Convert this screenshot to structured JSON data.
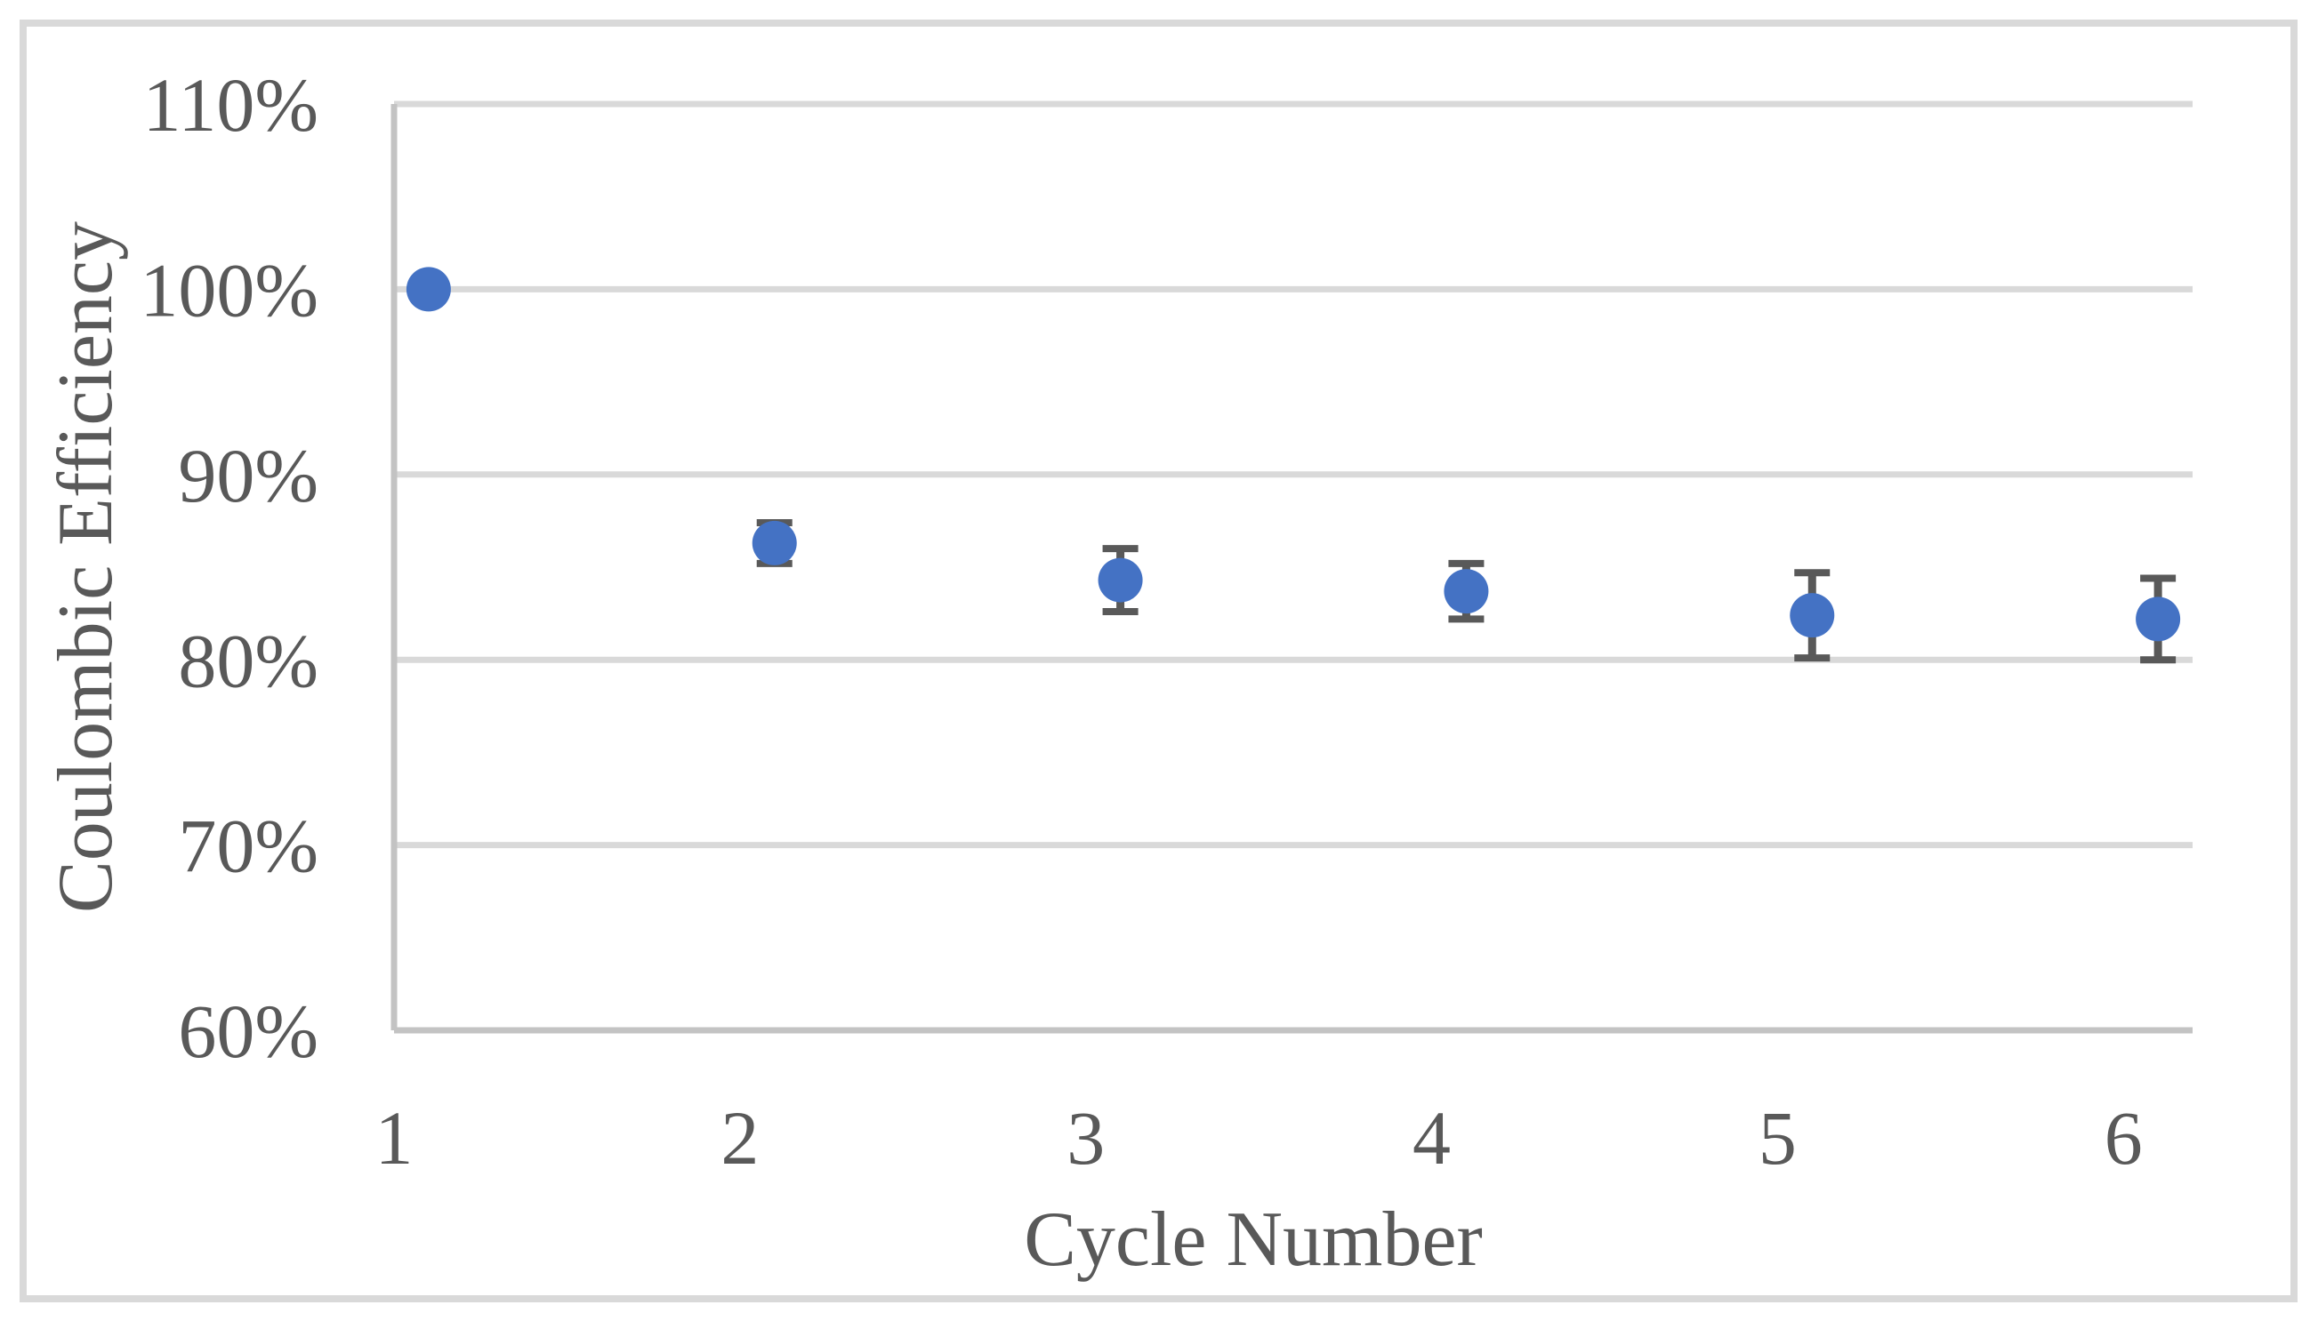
{
  "figure": {
    "background": "#ffffff",
    "border_color": "#d9d9d9"
  },
  "chart_data": {
    "type": "scatter",
    "title": "",
    "xlabel": "Cycle Number",
    "ylabel": "Coulombic Efficiency",
    "x": [
      1,
      2,
      3,
      4,
      5,
      6
    ],
    "series": [
      {
        "name": "Coulombic Efficiency",
        "values_percent": [
          100.0,
          86.3,
          84.3,
          83.7,
          82.4,
          82.2
        ],
        "error_percent": [
          0,
          1.1,
          1.7,
          1.5,
          2.3,
          2.2
        ],
        "marker": "circle"
      }
    ],
    "x_ticks": [
      {
        "value": 1,
        "label": "1"
      },
      {
        "value": 2,
        "label": "2"
      },
      {
        "value": 3,
        "label": "3"
      },
      {
        "value": 4,
        "label": "4"
      },
      {
        "value": 5,
        "label": "5"
      },
      {
        "value": 6,
        "label": "6"
      }
    ],
    "y_ticks": [
      {
        "value": 110,
        "label": "110%"
      },
      {
        "value": 100,
        "label": "100%"
      },
      {
        "value": 90,
        "label": "90%"
      },
      {
        "value": 80,
        "label": "80%"
      },
      {
        "value": 70,
        "label": "70%"
      },
      {
        "value": 60,
        "label": "60%"
      }
    ],
    "xlim": [
      1,
      6.2
    ],
    "ylim_percent": [
      60,
      110
    ],
    "x_point_offset": 0.1,
    "grid": "horizontal",
    "legend": "none",
    "colors": {
      "marker": "#4472C4",
      "error_bar": "#595959",
      "gridline": "#d9d9d9",
      "axis_line": "#c3c3c3",
      "text": "#595959",
      "figure_border": "#d9d9d9",
      "background": "#ffffff"
    }
  }
}
